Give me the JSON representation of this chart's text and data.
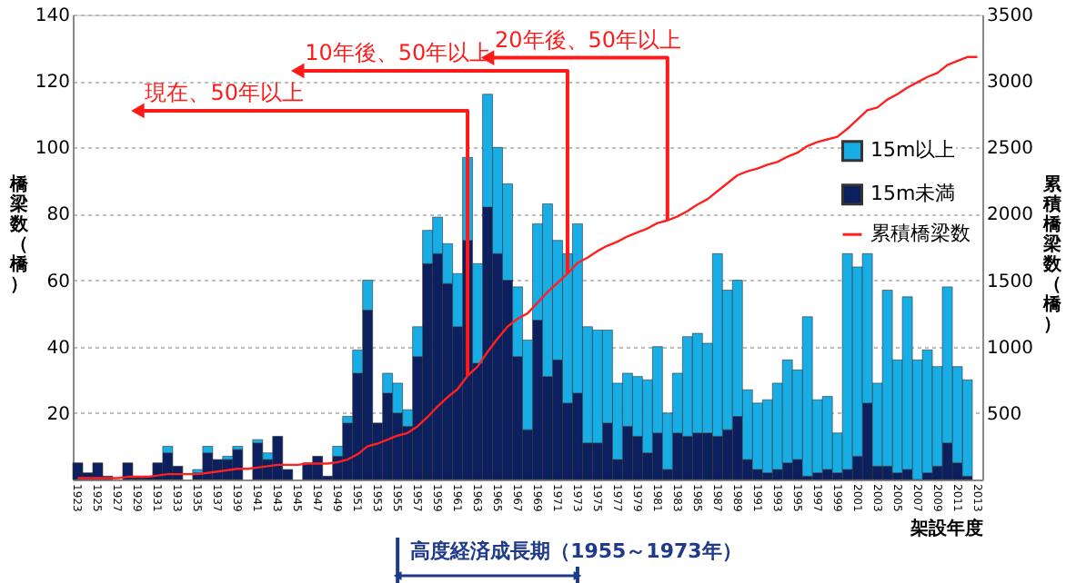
{
  "chart_data": {
    "type": "bar",
    "stacked": true,
    "categories": [
      "1923",
      null,
      "1925",
      null,
      "1927",
      null,
      "1929",
      null,
      "1931",
      null,
      "1933",
      null,
      "1935",
      null,
      "1937",
      null,
      "1939",
      null,
      "1941",
      null,
      "1943",
      null,
      "1945",
      null,
      "1947",
      null,
      "1949",
      null,
      "1951",
      null,
      "1953",
      null,
      "1955",
      null,
      "1957",
      null,
      "1959",
      null,
      "1961",
      null,
      "1963",
      null,
      "1965",
      null,
      "1967",
      null,
      "1969",
      null,
      "1971",
      null,
      "1973",
      null,
      "1975",
      null,
      "1977",
      null,
      "1979",
      null,
      "1981",
      null,
      "1983",
      null,
      "1985",
      null,
      "1987",
      null,
      "1989",
      null,
      "1991",
      null,
      "1993",
      null,
      "1995",
      null,
      "1997",
      null,
      "1999",
      null,
      "2001",
      null,
      "2003",
      null,
      "2005",
      null,
      "2007",
      null,
      "2009",
      null,
      "2011",
      null,
      "2013"
    ],
    "series": [
      {
        "name": "15m未満",
        "color": "#0c1f5e",
        "values": [
          5,
          2,
          5,
          1,
          0,
          5,
          1,
          1,
          5,
          8,
          4,
          0,
          2,
          8,
          6,
          6,
          9,
          0,
          11,
          6,
          13,
          3,
          0,
          5,
          7,
          1,
          7,
          17,
          32,
          51,
          17,
          26,
          20,
          16,
          37,
          65,
          68,
          59,
          46,
          72,
          35,
          82,
          68,
          60,
          37,
          15,
          48,
          31,
          36,
          23,
          26,
          11,
          11,
          17,
          6,
          16,
          13,
          8,
          14,
          3,
          14,
          13,
          14,
          14,
          13,
          15,
          19,
          6,
          3,
          2,
          3,
          5,
          6,
          1,
          2,
          3,
          2,
          3,
          7,
          23,
          4,
          4,
          2,
          3,
          0,
          2,
          4,
          11,
          5,
          1,
          null
        ]
      },
      {
        "name": "15m以上",
        "color": "#19ade6",
        "values": [
          0,
          0,
          0,
          0,
          0,
          0,
          0,
          0,
          0,
          2,
          0,
          0,
          1,
          2,
          0,
          1,
          1,
          0,
          1,
          2,
          0,
          0,
          0,
          0,
          0,
          0,
          3,
          2,
          7,
          9,
          0,
          6,
          9,
          5,
          9,
          10,
          11,
          12,
          16,
          25,
          30,
          34,
          32,
          29,
          21,
          27,
          29,
          52,
          36,
          45,
          51,
          35,
          34,
          28,
          23,
          16,
          18,
          22,
          26,
          17,
          18,
          30,
          30,
          27,
          55,
          42,
          41,
          21,
          20,
          22,
          26,
          31,
          27,
          48,
          22,
          22,
          12,
          65,
          57,
          45,
          25,
          53,
          34,
          52,
          36,
          37,
          30,
          47,
          29,
          29,
          null
        ]
      },
      {
        "name": "累積橋梁数",
        "color": "#ff2020",
        "type": "line",
        "axis": "y2",
        "values": [
          10,
          10,
          10,
          10,
          10,
          20,
          20,
          20,
          30,
          40,
          40,
          40,
          40,
          50,
          60,
          70,
          80,
          80,
          90,
          100,
          110,
          110,
          110,
          120,
          120,
          120,
          130,
          150,
          190,
          250,
          270,
          300,
          330,
          350,
          400,
          470,
          550,
          620,
          680,
          780,
          850,
          960,
          1060,
          1150,
          1210,
          1250,
          1330,
          1410,
          1480,
          1550,
          1630,
          1670,
          1720,
          1760,
          1790,
          1830,
          1860,
          1890,
          1930,
          1950,
          1980,
          2020,
          2070,
          2110,
          2170,
          2230,
          2290,
          2320,
          2340,
          2370,
          2390,
          2430,
          2460,
          2510,
          2540,
          2560,
          2580,
          2640,
          2710,
          2780,
          2800,
          2860,
          2900,
          2950,
          2990,
          3030,
          3060,
          3120,
          3150,
          3180,
          3180
        ]
      }
    ],
    "ylabel": "橋梁数（橋）",
    "y2label": "累積橋梁数（橋）",
    "xlabel": "架設年度",
    "ylim": [
      0,
      140
    ],
    "yticks": [
      20,
      40,
      60,
      80,
      100,
      120,
      140
    ],
    "y2lim": [
      0,
      3500
    ],
    "y2ticks": [
      500,
      1000,
      1500,
      2000,
      2500,
      3000,
      3500
    ],
    "grid": "y",
    "legend": "right",
    "annotations": [
      "現在、50年以上",
      "10年後、50年以上",
      "20年後、50年以上",
      "高度経済成長期（1955～1973年）"
    ]
  }
}
